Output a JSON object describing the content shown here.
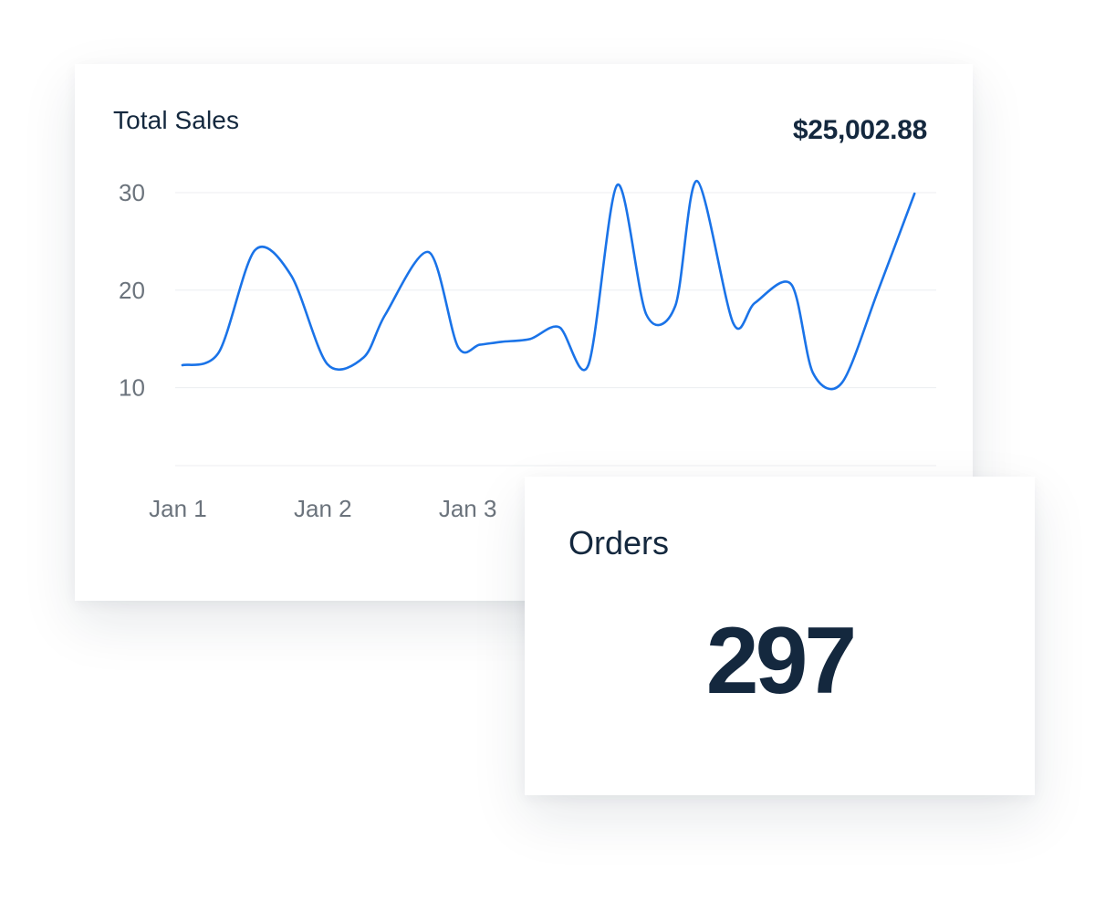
{
  "sales_card": {
    "title": "Total Sales",
    "total": "$25,002.88"
  },
  "orders_card": {
    "label": "Orders",
    "value": "297"
  },
  "colors": {
    "line": "#1a73e8",
    "text_dark": "#14283e",
    "text_muted": "#6b737c",
    "grid": "#eceef1"
  },
  "chart_data": {
    "type": "line",
    "title": "",
    "xlabel": "",
    "ylabel": "",
    "ylim": [
      2,
      31.5
    ],
    "xlim": [
      0.95,
      6.2
    ],
    "y_ticks": [
      10,
      20,
      30
    ],
    "x_ticks": [
      {
        "label": "Jan 1",
        "x": 1
      },
      {
        "label": "Jan 2",
        "x": 2
      },
      {
        "label": "Jan 3",
        "x": 3
      }
    ],
    "grid": true,
    "series": [
      {
        "x": [
          1.0,
          1.25,
          1.5,
          1.75,
          2.0,
          2.25,
          2.4,
          2.7,
          2.9,
          3.05,
          3.2,
          3.4,
          3.6,
          3.8,
          4.0,
          4.2,
          4.4,
          4.55,
          4.8,
          4.95,
          5.2,
          5.35,
          5.55,
          5.8,
          6.05
        ],
        "y": [
          12.3,
          13.6,
          24.1,
          21.5,
          12.4,
          13.1,
          17.5,
          23.9,
          14.2,
          14.4,
          14.7,
          15.0,
          16.2,
          12.3,
          30.8,
          17.5,
          18.4,
          31.2,
          16.6,
          18.7,
          20.6,
          11.5,
          10.5,
          20.0,
          29.9
        ]
      }
    ]
  }
}
